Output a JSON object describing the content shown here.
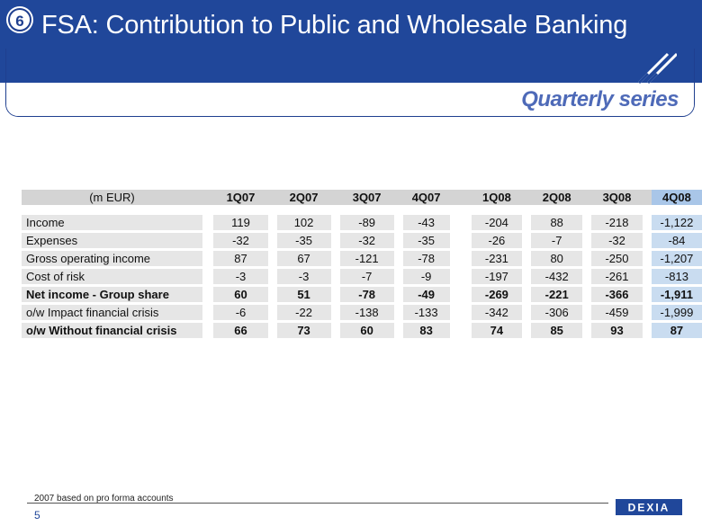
{
  "header": {
    "badge": "6",
    "title": "FSA: Contribution to Public and Wholesale Banking",
    "subtitle": "Quarterly series"
  },
  "table": {
    "unit_label": "(m EUR)",
    "columns": [
      "1Q07",
      "2Q07",
      "3Q07",
      "4Q07",
      "1Q08",
      "2Q08",
      "3Q08",
      "4Q08"
    ],
    "rows": [
      {
        "label": "Income",
        "values": [
          "119",
          "102",
          "-89",
          "-43",
          "-204",
          "88",
          "-218",
          "-1,122"
        ]
      },
      {
        "label": "Expenses",
        "values": [
          "-32",
          "-35",
          "-32",
          "-35",
          "-26",
          "-7",
          "-32",
          "-84"
        ]
      },
      {
        "label": "Gross operating income",
        "values": [
          "87",
          "67",
          "-121",
          "-78",
          "-231",
          "80",
          "-250",
          "-1,207"
        ]
      },
      {
        "label": "Cost of risk",
        "values": [
          "-3",
          "-3",
          "-7",
          "-9",
          "-197",
          "-432",
          "-261",
          "-813"
        ]
      },
      {
        "label": "Net income - Group share",
        "values": [
          "60",
          "51",
          "-78",
          "-49",
          "-269",
          "-221",
          "-366",
          "-1,911"
        ]
      },
      {
        "label": "o/w Impact financial crisis",
        "values": [
          "-6",
          "-22",
          "-138",
          "-133",
          "-342",
          "-306",
          "-459",
          "-1,999"
        ]
      },
      {
        "label": "o/w Without financial crisis",
        "values": [
          "66",
          "73",
          "60",
          "83",
          "74",
          "85",
          "93",
          "87"
        ]
      }
    ]
  },
  "footer": {
    "note": "2007 based on pro forma accounts",
    "page": "5",
    "logo_text": "DEXIA"
  },
  "colors": {
    "brand_blue": "#20479a",
    "subtitle_blue": "#4e6ab8",
    "highlight_column": "#c9dcf0"
  }
}
